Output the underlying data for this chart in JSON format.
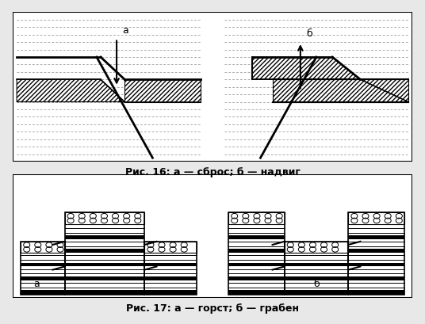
{
  "fig_width": 5.36,
  "fig_height": 4.1,
  "dpi": 100,
  "bg_color": "#e8e8e8",
  "caption1": "Рис. 16: а — сброс; б — надвиг",
  "caption2": "Рис. 17: а — горст; б — грабен",
  "label_a": "а",
  "label_b": "б"
}
